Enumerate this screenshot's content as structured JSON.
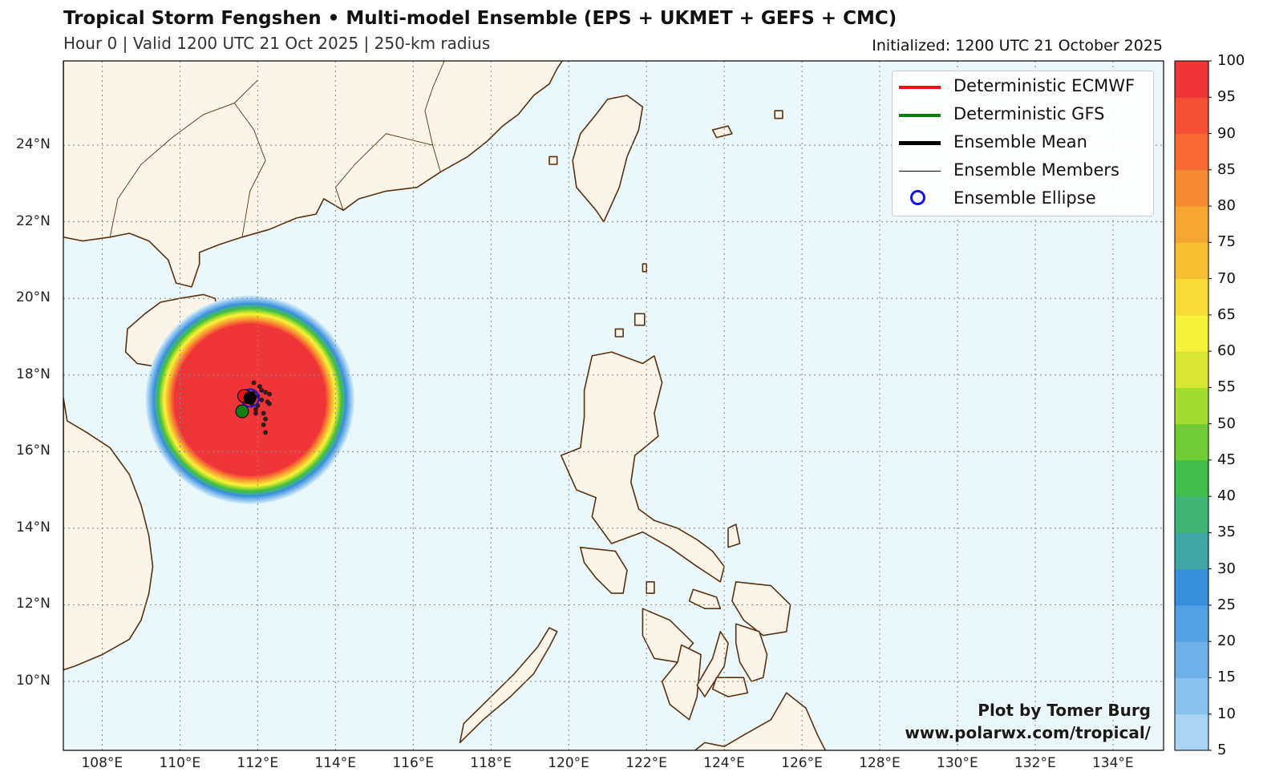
{
  "header": {
    "title": "Tropical Storm Fengshen • Multi-model Ensemble (EPS + UKMET + GEFS + CMC)",
    "subtitle": "Hour 0 | Valid 1200 UTC 21 Oct 2025 | 250-km radius",
    "initialized": "Initialized: 1200 UTC 21 October 2025"
  },
  "map": {
    "projection": "lat-lon",
    "extent": {
      "lon": [
        107,
        135.3
      ],
      "lat": [
        8.2,
        26.2
      ]
    },
    "colors": {
      "ocean": "#eaf8fb",
      "land": "#fbf4e9",
      "coast": "#5a3210",
      "grid": "#888888"
    },
    "lon_ticks": [
      "108°E",
      "110°E",
      "112°E",
      "114°E",
      "116°E",
      "118°E",
      "120°E",
      "122°E",
      "124°E",
      "126°E",
      "128°E",
      "130°E",
      "132°E",
      "134°E"
    ],
    "lat_ticks": [
      "10°N",
      "12°N",
      "14°N",
      "16°N",
      "18°N",
      "20°N",
      "22°N",
      "24°N"
    ],
    "grid": true
  },
  "storm": {
    "center": {
      "lon": 111.8,
      "lat": 17.35
    },
    "strike_probability_peak": 100,
    "radius_km": 250,
    "ecmwf": {
      "lon": 111.65,
      "lat": 17.45
    },
    "gfs": {
      "lon": 111.6,
      "lat": 17.05
    },
    "ensemble_mean": {
      "lon": 111.8,
      "lat": 17.4
    },
    "members": [
      [
        111.9,
        17.8
      ],
      [
        112.05,
        17.7
      ],
      [
        112.2,
        17.55
      ],
      [
        112.3,
        17.5
      ],
      [
        112.1,
        17.35
      ],
      [
        112.0,
        17.2
      ],
      [
        111.95,
        17.1
      ],
      [
        112.15,
        17.0
      ],
      [
        112.2,
        16.85
      ],
      [
        112.15,
        16.7
      ],
      [
        112.2,
        16.5
      ],
      [
        111.9,
        17.55
      ],
      [
        112.0,
        17.45
      ],
      [
        112.25,
        17.3
      ],
      [
        111.7,
        17.3
      ],
      [
        111.85,
        17.25
      ],
      [
        112.1,
        17.6
      ],
      [
        111.75,
        17.55
      ],
      [
        112.3,
        17.25
      ],
      [
        111.95,
        17.0
      ]
    ]
  },
  "legend": [
    {
      "label": "Deterministic ECMWF",
      "icon": "red-line",
      "color": "#ee1111"
    },
    {
      "label": "Deterministic GFS",
      "icon": "green-line",
      "color": "#0f7d0f"
    },
    {
      "label": "Ensemble Mean",
      "icon": "black-thick-line",
      "color": "#000000"
    },
    {
      "label": "Ensemble Members",
      "icon": "black-thin-line",
      "color": "#000000"
    },
    {
      "label": "Ensemble Ellipse",
      "icon": "blue-circle",
      "color": "#1111ee"
    }
  ],
  "colorbar": {
    "levels": [
      5,
      10,
      15,
      20,
      25,
      30,
      35,
      40,
      45,
      50,
      55,
      60,
      65,
      70,
      75,
      80,
      85,
      90,
      95,
      100
    ],
    "colors": [
      "#c8e4f8",
      "#a9d4f3",
      "#8ac2ee",
      "#6fb0e8",
      "#549fe2",
      "#3a8fdc",
      "#3fa6a5",
      "#3fb474",
      "#3fbe4d",
      "#6fcc35",
      "#a5da30",
      "#d5e532",
      "#f5f23a",
      "#f7da35",
      "#f6bf33",
      "#f6a533",
      "#f68a33",
      "#f76a33",
      "#f55136",
      "#ef3538"
    ],
    "tick_labels": [
      "5",
      "10",
      "15",
      "20",
      "25",
      "30",
      "35",
      "40",
      "45",
      "50",
      "55",
      "60",
      "65",
      "70",
      "75",
      "80",
      "85",
      "90",
      "95",
      "100"
    ]
  },
  "credit": {
    "line1": "Plot by Tomer Burg",
    "line2": "www.polarwx.com/tropical/"
  }
}
